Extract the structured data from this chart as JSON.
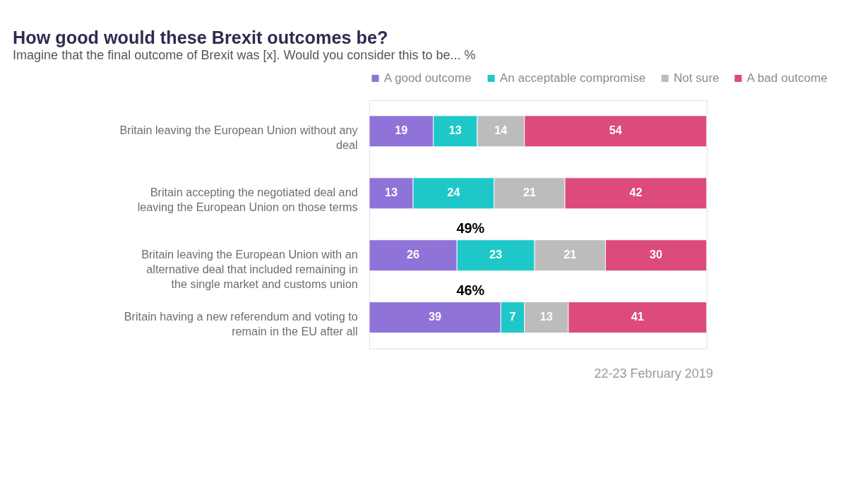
{
  "chart_data": {
    "type": "bar",
    "orientation": "horizontal",
    "stacked": true,
    "data_labels": true,
    "legend": "top",
    "title": "How good would these Brexit outcomes be?",
    "subtitle": "Imagine that the final outcome of Brexit was [x]. Would you consider this to be... %",
    "categories": [
      "Britain leaving the European Union without any deal",
      "Britain accepting the negotiated deal and leaving the European Union on those terms",
      "Britain leaving the European Union with an alternative deal that included remaining in the single market and customs union",
      "Britain having a new referendum and voting to remain in the EU after all"
    ],
    "series": [
      {
        "name": "A good outcome",
        "color": "#8f73d8",
        "values": [
          19,
          13,
          26,
          39
        ]
      },
      {
        "name": "An acceptable compromise",
        "color": "#1ec8c8",
        "values": [
          13,
          24,
          23,
          7
        ]
      },
      {
        "name": "Not sure",
        "color": "#bcbcbc",
        "values": [
          14,
          21,
          21,
          13
        ]
      },
      {
        "name": "A bad outcome",
        "color": "#dc4a7e",
        "values": [
          54,
          42,
          30,
          41
        ]
      }
    ],
    "xlim": [
      0,
      100
    ],
    "annotations": [
      "49%",
      "46%",
      "22-23 February 2019"
    ]
  }
}
